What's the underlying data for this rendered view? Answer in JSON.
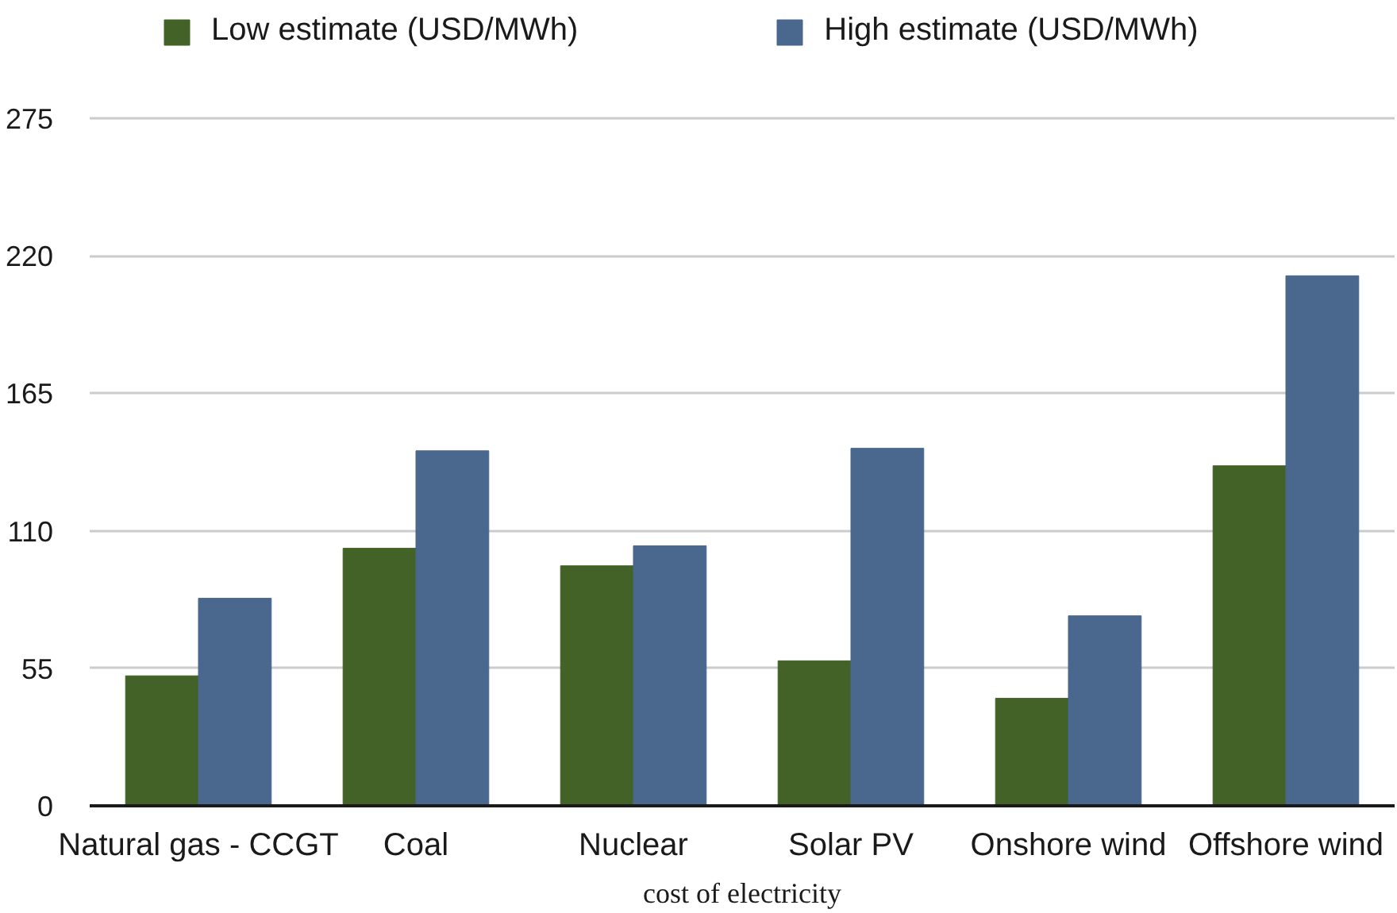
{
  "chart_data": {
    "type": "bar",
    "xlabel": "cost of electricity",
    "categories": [
      "Natural gas - CCGT",
      "Coal",
      "Nuclear",
      "Solar PV",
      "Onshore wind",
      "Offshore wind"
    ],
    "series": [
      {
        "name": "Low estimate (USD/MWh)",
        "color": "#436228",
        "values": [
          52,
          103,
          96,
          58,
          43,
          136
        ]
      },
      {
        "name": "High estimate (USD/MWh)",
        "color": "#4a678e",
        "values": [
          83,
          142,
          104,
          143,
          76,
          212
        ]
      }
    ],
    "ylim": [
      0,
      275
    ],
    "yticks": [
      0,
      55,
      110,
      165,
      220,
      275
    ],
    "grid": "y",
    "legend": "top"
  }
}
